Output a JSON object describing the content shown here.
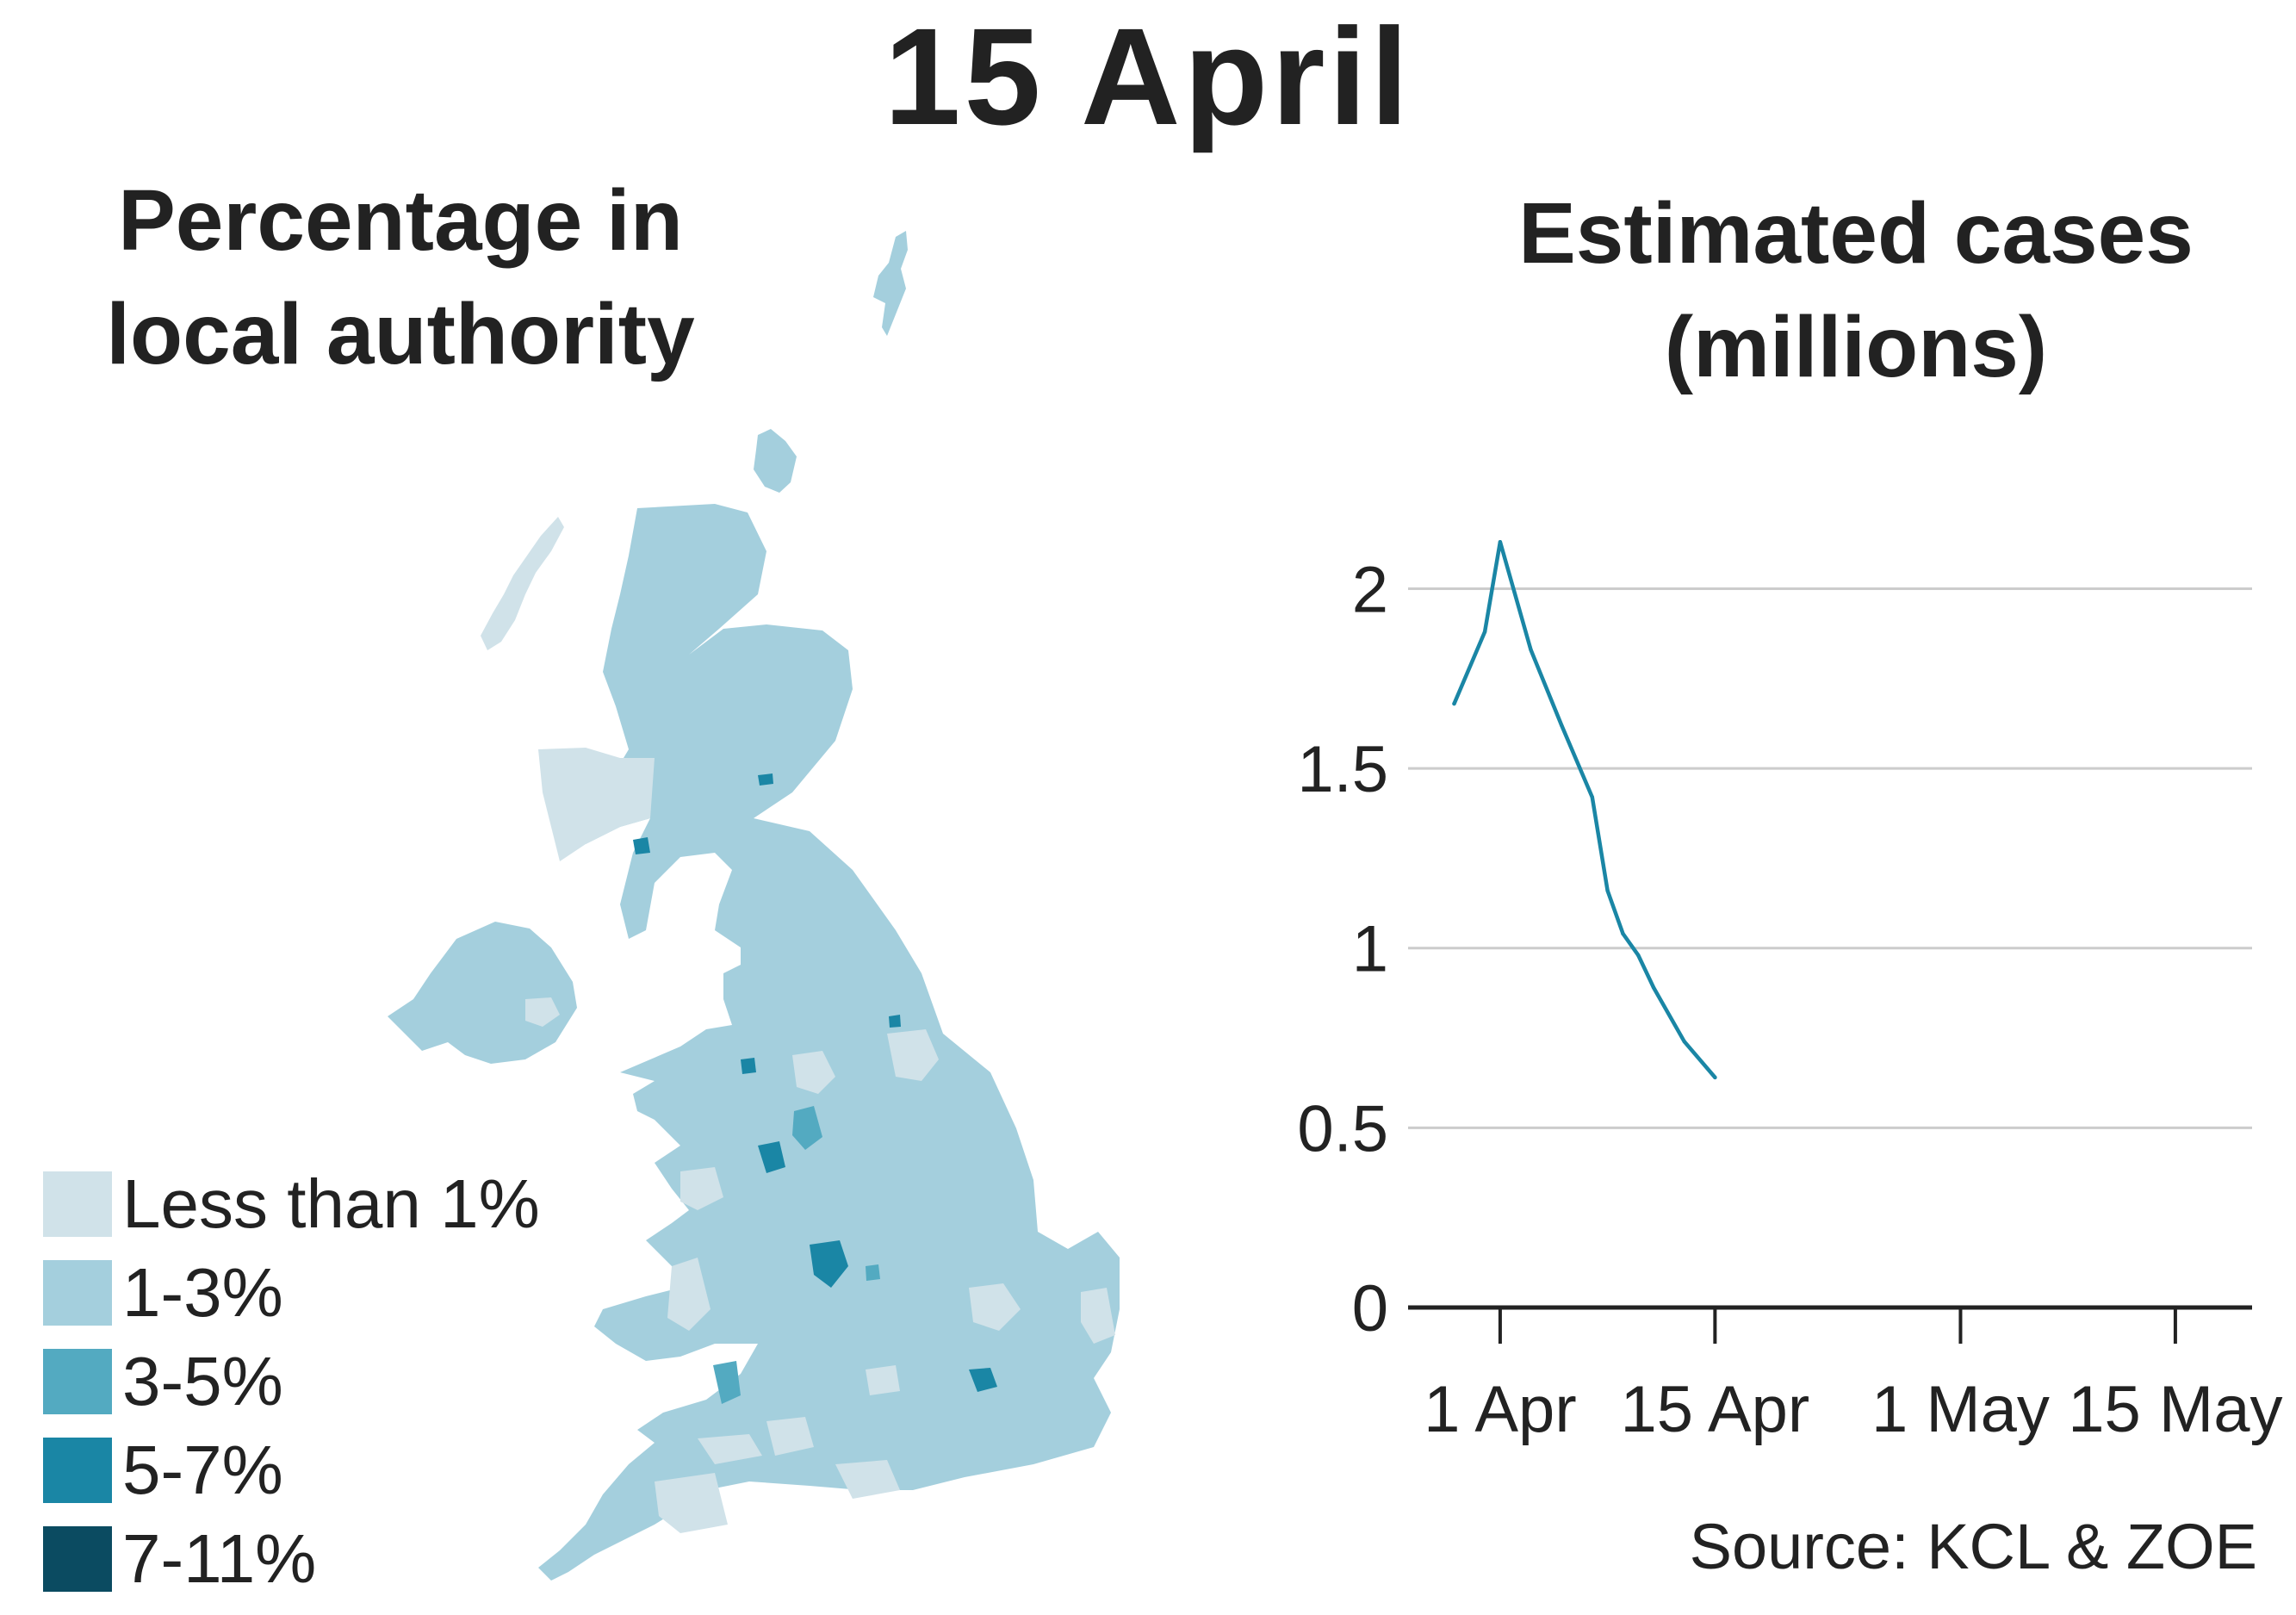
{
  "title": "15 April",
  "map": {
    "title_line1": "Percentage in",
    "title_line2": "local authority",
    "legend": [
      {
        "label": "Less than 1%",
        "color": "#d0e2e9"
      },
      {
        "label": "1-3%",
        "color": "#a4cfdd"
      },
      {
        "label": "3-5%",
        "color": "#53aac1"
      },
      {
        "label": "5-7%",
        "color": "#1a86a5"
      },
      {
        "label": "7-11%",
        "color": "#0b4b61"
      }
    ]
  },
  "chart_data": {
    "type": "line",
    "title": "Estimated cases (millions)",
    "title_line1": "Estimated cases",
    "title_line2": "(millions)",
    "xlabel": "",
    "ylabel": "",
    "x_ticks": [
      "1 Apr",
      "15 Apr",
      "1 May",
      "15 May"
    ],
    "y_ticks": [
      "0",
      "0.5",
      "1",
      "1.5",
      "2"
    ],
    "xlim": [
      "2022-03-26",
      "2022-05-20"
    ],
    "ylim": [
      0,
      2.2
    ],
    "grid": true,
    "series": [
      {
        "color": "#1a86a5",
        "x": [
          "2022-03-29",
          "2022-03-31",
          "2022-04-01",
          "2022-04-03",
          "2022-04-05",
          "2022-04-07",
          "2022-04-08",
          "2022-04-09",
          "2022-04-10",
          "2022-04-11",
          "2022-04-13",
          "2022-04-15"
        ],
        "values": [
          1.68,
          1.88,
          2.13,
          1.83,
          1.62,
          1.42,
          1.16,
          1.04,
          0.98,
          0.89,
          0.74,
          0.64
        ]
      }
    ]
  },
  "source": "Source: KCL & ZOE"
}
